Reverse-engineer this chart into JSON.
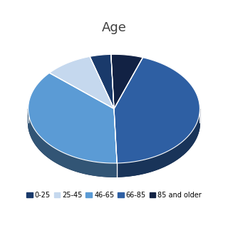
{
  "title": "Age",
  "labels": [
    "0-25",
    "25-45",
    "46-65",
    "66-85",
    "85 and older"
  ],
  "sizes": [
    4,
    9,
    37,
    44,
    6
  ],
  "colors": [
    "#1a3a6b",
    "#c5d8ee",
    "#5b9bd5",
    "#2e5fa3",
    "#122244"
  ],
  "edge_colors": [
    "#1a3a6b",
    "#c5d8ee",
    "#5b9bd5",
    "#2e5fa3",
    "#122244"
  ],
  "startangle": 92,
  "background_color": "#ffffff",
  "title_fontsize": 13,
  "legend_fontsize": 7
}
